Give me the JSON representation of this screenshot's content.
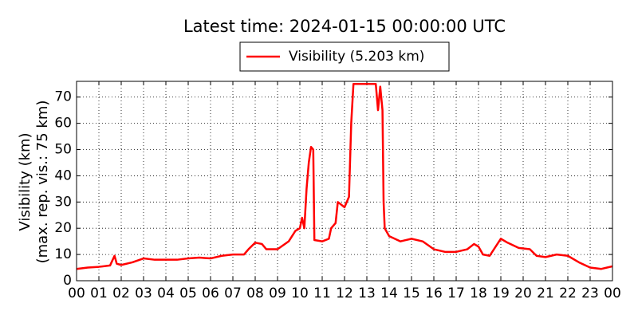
{
  "chart_data": {
    "type": "line",
    "title": "Latest time: 2024-01-15 00:00:00 UTC",
    "y_label": [
      "Visibility (km)",
      "(max. rep. vis.: 75 km)"
    ],
    "x": [
      0,
      0.5,
      1,
      1.5,
      1.7,
      1.8,
      2,
      2.5,
      3,
      3.5,
      4,
      4.5,
      5,
      5.5,
      6,
      6.5,
      7,
      7.5,
      7.7,
      8,
      8.3,
      8.5,
      9,
      9.5,
      9.8,
      10,
      10.1,
      10.2,
      10.3,
      10.4,
      10.5,
      10.6,
      10.65,
      11,
      11.3,
      11.4,
      11.6,
      11.7,
      12,
      12.2,
      12.3,
      12.4,
      13,
      13.4,
      13.5,
      13.6,
      13.7,
      13.75,
      13.8,
      14,
      14.5,
      15,
      15.5,
      16,
      16.5,
      17,
      17.5,
      17.8,
      18,
      18.2,
      18.5,
      19,
      19.3,
      19.8,
      20.3,
      20.6,
      21,
      21.5,
      22,
      22.5,
      23,
      23.5,
      24
    ],
    "series": [
      {
        "name": "Visibility (5.203 km)",
        "color": "#ff0000",
        "values": [
          4.5,
          5,
          5.3,
          5.8,
          9.5,
          6.5,
          6,
          7,
          8.5,
          8,
          8,
          8,
          8.5,
          8.8,
          8.5,
          9.5,
          10,
          10,
          12,
          14.5,
          14,
          12,
          12,
          15,
          19,
          20,
          24,
          20,
          35,
          45,
          51,
          50,
          15.5,
          15,
          16,
          20,
          22,
          30,
          28,
          32,
          60,
          75,
          75,
          75,
          65,
          74,
          65,
          30,
          20,
          17,
          15,
          16,
          15,
          12,
          11,
          11,
          12,
          14,
          13,
          10,
          9.5,
          16,
          14.5,
          12.5,
          12,
          9.5,
          9,
          10,
          9.5,
          7,
          5,
          4.5,
          5.5
        ]
      }
    ],
    "xlim": [
      0,
      24
    ],
    "xticks": [
      {
        "value": 0,
        "label": "00"
      },
      {
        "value": 1,
        "label": "01"
      },
      {
        "value": 2,
        "label": "02"
      },
      {
        "value": 3,
        "label": "03"
      },
      {
        "value": 4,
        "label": "04"
      },
      {
        "value": 5,
        "label": "05"
      },
      {
        "value": 6,
        "label": "06"
      },
      {
        "value": 7,
        "label": "07"
      },
      {
        "value": 8,
        "label": "08"
      },
      {
        "value": 9,
        "label": "09"
      },
      {
        "value": 10,
        "label": "10"
      },
      {
        "value": 11,
        "label": "11"
      },
      {
        "value": 12,
        "label": "12"
      },
      {
        "value": 13,
        "label": "13"
      },
      {
        "value": 14,
        "label": "14"
      },
      {
        "value": 15,
        "label": "15"
      },
      {
        "value": 16,
        "label": "16"
      },
      {
        "value": 17,
        "label": "17"
      },
      {
        "value": 18,
        "label": "18"
      },
      {
        "value": 19,
        "label": "19"
      },
      {
        "value": 20,
        "label": "20"
      },
      {
        "value": 21,
        "label": "21"
      },
      {
        "value": 22,
        "label": "22"
      },
      {
        "value": 23,
        "label": "23"
      },
      {
        "value": 24,
        "label": "00"
      }
    ],
    "ylim": [
      0,
      76
    ],
    "yticks": [
      0,
      10,
      20,
      30,
      40,
      50,
      60,
      70
    ],
    "grid": true,
    "legend": "top"
  }
}
